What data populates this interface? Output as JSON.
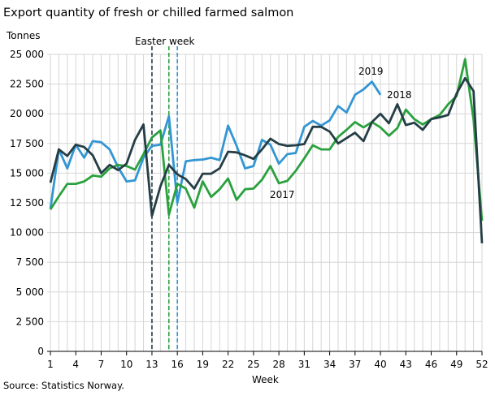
{
  "chart_data": {
    "type": "line",
    "title": "Export quantity of fresh or chilled farmed salmon",
    "ylabel": "Tonnes",
    "xlabel": "Week",
    "source": "Source: Statistics Norway.",
    "xlim": [
      1,
      52
    ],
    "ylim": [
      0,
      25000
    ],
    "grid": true,
    "x_ticks": [
      1,
      4,
      7,
      10,
      13,
      16,
      19,
      22,
      25,
      28,
      31,
      34,
      37,
      40,
      43,
      46,
      49,
      52
    ],
    "y_ticks": [
      0,
      2500,
      5000,
      7500,
      10000,
      12500,
      15000,
      17500,
      20000,
      22500,
      25000
    ],
    "y_tick_labels": [
      "0",
      "2 500",
      "5 000",
      "7 500",
      "10 000",
      "12 500",
      "15 000",
      "17 500",
      "20 000",
      "22 500",
      "25 000"
    ],
    "annotation": "Easter week",
    "easter_weeks": [
      {
        "series": "2018",
        "week": 13
      },
      {
        "series": "2017",
        "week": 15
      },
      {
        "series": "2019",
        "week": 16
      }
    ],
    "series": [
      {
        "name": "2017",
        "color": "#2aa13e",
        "values": [
          11950,
          13050,
          14100,
          14100,
          14300,
          14800,
          14700,
          15400,
          15700,
          15600,
          15300,
          16600,
          18000,
          18600,
          11500,
          14100,
          13700,
          12100,
          14300,
          13000,
          13650,
          14550,
          12750,
          13650,
          13700,
          14450,
          15600,
          14150,
          14350,
          15200,
          16250,
          17350,
          17000,
          17000,
          18050,
          18650,
          19300,
          18850,
          19300,
          18850,
          18150,
          18800,
          20350,
          19550,
          19100,
          19550,
          19900,
          20800,
          21500,
          24600,
          19500,
          11000
        ]
      },
      {
        "name": "2018",
        "color": "#253e46",
        "values": [
          14200,
          17000,
          16450,
          17400,
          17200,
          16500,
          15000,
          15700,
          15250,
          15800,
          17800,
          19100,
          11400,
          13900,
          15700,
          14900,
          14500,
          13700,
          14950,
          14950,
          15400,
          16800,
          16750,
          16500,
          16200,
          17000,
          17900,
          17450,
          17300,
          17350,
          17450,
          18900,
          18900,
          18500,
          17500,
          17950,
          18400,
          17700,
          19300,
          20000,
          19200,
          20800,
          19050,
          19250,
          18650,
          19550,
          19700,
          19900,
          21700,
          23000,
          21900,
          9100
        ]
      },
      {
        "name": "2019",
        "color": "#3396d3",
        "values": [
          12000,
          17000,
          15400,
          17400,
          16300,
          17700,
          17600,
          17000,
          15500,
          14300,
          14400,
          16300,
          17300,
          17400,
          19800,
          12500,
          16000,
          16100,
          16150,
          16300,
          16100,
          19000,
          17300,
          15400,
          15600,
          17800,
          17400,
          15800,
          16600,
          16700,
          18900,
          19400,
          19000,
          19450,
          20650,
          20100,
          21600,
          22050,
          22700,
          21600
        ]
      }
    ]
  }
}
